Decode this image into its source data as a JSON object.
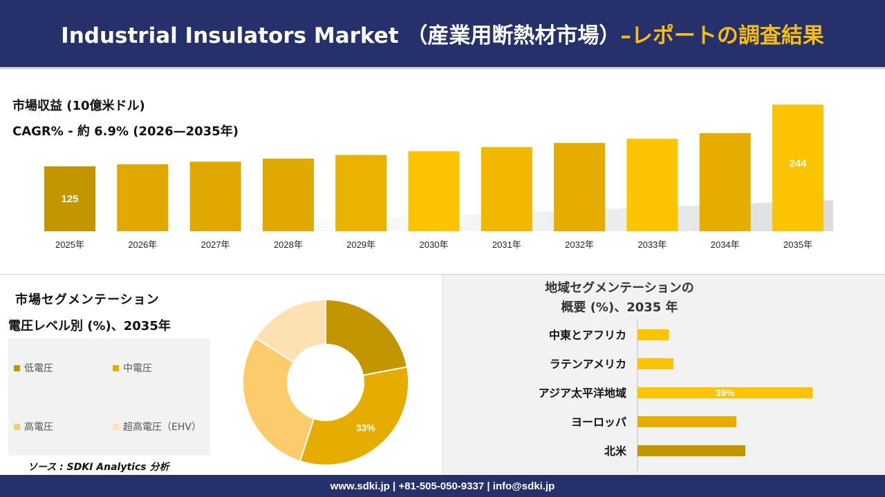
{
  "header": {
    "title_main": "Industrial Insulators Market （産業用断熱材市場）",
    "title_highlight": "–レポートの調査結果"
  },
  "revenue": {
    "label": "市場収益 (10億米ドル)",
    "cagr": "CAGR% - 約 6.9% (2026—2035年)"
  },
  "segment": {
    "title": "市場セグメンテーション",
    "subtitle": "電圧レベル別 (%)、2035年",
    "legend": [
      "低電圧",
      "中電圧",
      "高電圧",
      "超高電圧（EHV）"
    ],
    "source": "ソース : SDKI Analytics 分析"
  },
  "region": {
    "title_line1": "地域セグメンテーションの",
    "title_line2": "概要 (%)、2035 年"
  },
  "footer": {
    "text": "www.sdki.jp | +81-505-050-9337 | info@sdki.jp"
  },
  "colors": {
    "header_bg": "#26306b",
    "accent": "#f7bd14",
    "bar_dark": "#c39600",
    "bar_mid": "#e6ac00",
    "bar_light": "#fcc300"
  },
  "chart_data": [
    {
      "type": "bar",
      "title": "市場収益 (10億米ドル)",
      "categories": [
        "2025年",
        "2026年",
        "2027年",
        "2028年",
        "2029年",
        "2030年",
        "2031年",
        "2032年",
        "2033年",
        "2034年",
        "2035年"
      ],
      "values": [
        125,
        129,
        134,
        140,
        147,
        154,
        162,
        170,
        178,
        189,
        244
      ],
      "data_labels": {
        "2025年": "125",
        "2035年": "244"
      },
      "ylim": [
        0,
        260
      ],
      "grid": false
    },
    {
      "type": "pie",
      "categories": [
        "低電圧",
        "中電圧",
        "高電圧",
        "超高電圧（EHV）"
      ],
      "values": [
        22,
        33,
        29,
        16
      ],
      "data_labels": {
        "中電圧": "33%"
      },
      "colors": [
        "#c39600",
        "#e6ac00",
        "#fccb6b",
        "#fde1b3"
      ],
      "legend": "left"
    },
    {
      "type": "bar",
      "orientation": "horizontal",
      "categories": [
        "中東とアフリカ",
        "ラテンアメリカ",
        "アジア太平洋地域",
        "ヨーロッパ",
        "北米"
      ],
      "values": [
        7,
        8,
        39,
        22,
        24
      ],
      "data_labels": {
        "アジア太平洋地域": "39%"
      },
      "colors": [
        "#fcc300",
        "#fcc300",
        "#fcc300",
        "#e6ac00",
        "#c39600"
      ],
      "xlim": [
        0,
        45
      ]
    }
  ]
}
